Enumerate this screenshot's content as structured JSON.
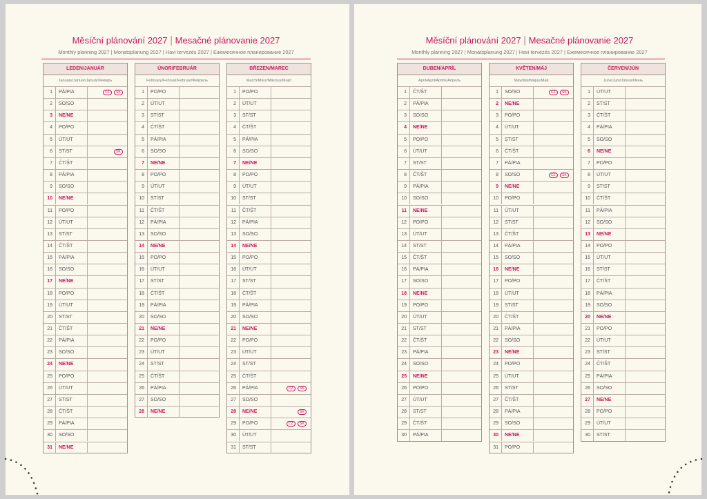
{
  "pages": [
    {
      "title_cz": "Měsíční plánování 2027",
      "title_sk": "Mesačné plánovanie 2027",
      "subtitle": "Monthly planning 2027 | Monatsplanung 2027 | Havi tervezés 2027 | Ежемесячное планирование 2027",
      "months": [
        {
          "name": "LEDEN/JANUÁR",
          "subtitle": "January/Januar/Január/Январь",
          "sundays": [
            3,
            10,
            17,
            24,
            31
          ],
          "days": [
            [
              1,
              "PÁ/PIA",
              "CZ",
              "SK"
            ],
            [
              2,
              "SO/SO"
            ],
            [
              3,
              "NE/NE"
            ],
            [
              4,
              "PO/PO"
            ],
            [
              5,
              "ÚT/UT"
            ],
            [
              6,
              "ST/ST",
              "SK"
            ],
            [
              7,
              "ČT/ŠT"
            ],
            [
              8,
              "PÁ/PIA"
            ],
            [
              9,
              "SO/SO"
            ],
            [
              10,
              "NE/NE"
            ],
            [
              11,
              "PO/PO"
            ],
            [
              12,
              "ÚT/UT"
            ],
            [
              13,
              "ST/ST"
            ],
            [
              14,
              "ČT/ŠT"
            ],
            [
              15,
              "PÁ/PIA"
            ],
            [
              16,
              "SO/SO"
            ],
            [
              17,
              "NE/NE"
            ],
            [
              18,
              "PO/PO"
            ],
            [
              19,
              "ÚT/UT"
            ],
            [
              20,
              "ST/ST"
            ],
            [
              21,
              "ČT/ŠT"
            ],
            [
              22,
              "PÁ/PIA"
            ],
            [
              23,
              "SO/SO"
            ],
            [
              24,
              "NE/NE"
            ],
            [
              25,
              "PO/PO"
            ],
            [
              26,
              "ÚT/UT"
            ],
            [
              27,
              "ST/ST"
            ],
            [
              28,
              "ČT/ŠT"
            ],
            [
              29,
              "PÁ/PIA"
            ],
            [
              30,
              "SO/SO"
            ],
            [
              31,
              "NE/NE"
            ]
          ]
        },
        {
          "name": "ÚNOR/FEBRUÁR",
          "subtitle": "February/Februar/Február/Февраль",
          "sundays": [
            7,
            14,
            21,
            28
          ],
          "days": [
            [
              1,
              "PO/PO"
            ],
            [
              2,
              "ÚT/UT"
            ],
            [
              3,
              "ST/ST"
            ],
            [
              4,
              "ČT/ŠT"
            ],
            [
              5,
              "PÁ/PIA"
            ],
            [
              6,
              "SO/SO"
            ],
            [
              7,
              "NE/NE"
            ],
            [
              8,
              "PO/PO"
            ],
            [
              9,
              "ÚT/UT"
            ],
            [
              10,
              "ST/ST"
            ],
            [
              11,
              "ČT/ŠT"
            ],
            [
              12,
              "PÁ/PIA"
            ],
            [
              13,
              "SO/SO"
            ],
            [
              14,
              "NE/NE"
            ],
            [
              15,
              "PO/PO"
            ],
            [
              16,
              "ÚT/UT"
            ],
            [
              17,
              "ST/ST"
            ],
            [
              18,
              "ČT/ŠT"
            ],
            [
              19,
              "PÁ/PIA"
            ],
            [
              20,
              "SO/SO"
            ],
            [
              21,
              "NE/NE"
            ],
            [
              22,
              "PO/PO"
            ],
            [
              23,
              "ÚT/UT"
            ],
            [
              24,
              "ST/ST"
            ],
            [
              25,
              "ČT/ŠT"
            ],
            [
              26,
              "PÁ/PIA"
            ],
            [
              27,
              "SO/SO"
            ],
            [
              28,
              "NE/NE"
            ]
          ]
        },
        {
          "name": "BŘEZEN/MAREC",
          "subtitle": "March/März/Március/Март",
          "sundays": [
            7,
            14,
            21,
            28
          ],
          "days": [
            [
              1,
              "PO/PO"
            ],
            [
              2,
              "ÚT/UT"
            ],
            [
              3,
              "ST/ST"
            ],
            [
              4,
              "ČT/ŠT"
            ],
            [
              5,
              "PÁ/PIA"
            ],
            [
              6,
              "SO/SO"
            ],
            [
              7,
              "NE/NE"
            ],
            [
              8,
              "PO/PO"
            ],
            [
              9,
              "ÚT/UT"
            ],
            [
              10,
              "ST/ST"
            ],
            [
              11,
              "ČT/ŠT"
            ],
            [
              12,
              "PÁ/PIA"
            ],
            [
              13,
              "SO/SO"
            ],
            [
              14,
              "NE/NE"
            ],
            [
              15,
              "PO/PO"
            ],
            [
              16,
              "ÚT/UT"
            ],
            [
              17,
              "ST/ST"
            ],
            [
              18,
              "ČT/ŠT"
            ],
            [
              19,
              "PÁ/PIA"
            ],
            [
              20,
              "SO/SO"
            ],
            [
              21,
              "NE/NE"
            ],
            [
              22,
              "PO/PO"
            ],
            [
              23,
              "ÚT/UT"
            ],
            [
              24,
              "ST/ST"
            ],
            [
              25,
              "ČT/ŠT"
            ],
            [
              26,
              "PÁ/PIA",
              "CZ",
              "SK"
            ],
            [
              27,
              "SO/SO"
            ],
            [
              28,
              "NE/NE",
              "SK"
            ],
            [
              29,
              "PO/PO",
              "CZ",
              "SK"
            ],
            [
              30,
              "ÚT/UT"
            ],
            [
              31,
              "ST/ST"
            ]
          ]
        }
      ]
    },
    {
      "title_cz": "Měsíční plánování 2027",
      "title_sk": "Mesačné plánovanie 2027",
      "subtitle": "Monthly planning 2027 | Monatsplanung 2027 | Havi tervezés 2027 | Ежемесячное планирование 2027",
      "months": [
        {
          "name": "DUBEN/APRÍL",
          "subtitle": "April/April/Április/Апрель",
          "sundays": [
            4,
            11,
            18,
            25
          ],
          "days": [
            [
              1,
              "ČT/ŠT"
            ],
            [
              2,
              "PÁ/PIA"
            ],
            [
              3,
              "SO/SO"
            ],
            [
              4,
              "NE/NE"
            ],
            [
              5,
              "PO/PO"
            ],
            [
              6,
              "ÚT/UT"
            ],
            [
              7,
              "ST/ST"
            ],
            [
              8,
              "ČT/ŠT"
            ],
            [
              9,
              "PÁ/PIA"
            ],
            [
              10,
              "SO/SO"
            ],
            [
              11,
              "NE/NE"
            ],
            [
              12,
              "PO/PO"
            ],
            [
              13,
              "ÚT/UT"
            ],
            [
              14,
              "ST/ST"
            ],
            [
              15,
              "ČT/ŠT"
            ],
            [
              16,
              "PÁ/PIA"
            ],
            [
              17,
              "SO/SO"
            ],
            [
              18,
              "NE/NE"
            ],
            [
              19,
              "PO/PO"
            ],
            [
              20,
              "ÚT/UT"
            ],
            [
              21,
              "ST/ST"
            ],
            [
              22,
              "ČT/ŠT"
            ],
            [
              23,
              "PÁ/PIA"
            ],
            [
              24,
              "SO/SO"
            ],
            [
              25,
              "NE/NE"
            ],
            [
              26,
              "PO/PO"
            ],
            [
              27,
              "ÚT/UT"
            ],
            [
              28,
              "ST/ST"
            ],
            [
              29,
              "ČT/ŠT"
            ],
            [
              30,
              "PÁ/PIA"
            ]
          ]
        },
        {
          "name": "KVĚTEN/MÁJ",
          "subtitle": "May/Mai/Május/Май",
          "sundays": [
            2,
            9,
            16,
            23,
            30
          ],
          "days": [
            [
              1,
              "SO/SO",
              "CZ",
              "SK"
            ],
            [
              2,
              "NE/NE"
            ],
            [
              3,
              "PO/PO"
            ],
            [
              4,
              "ÚT/UT"
            ],
            [
              5,
              "ST/ST"
            ],
            [
              6,
              "ČT/ŠT"
            ],
            [
              7,
              "PÁ/PIA"
            ],
            [
              8,
              "SO/SO",
              "CZ",
              "SK"
            ],
            [
              9,
              "NE/NE"
            ],
            [
              10,
              "PO/PO"
            ],
            [
              11,
              "ÚT/UT"
            ],
            [
              12,
              "ST/ST"
            ],
            [
              13,
              "ČT/ŠT"
            ],
            [
              14,
              "PÁ/PIA"
            ],
            [
              15,
              "SO/SO"
            ],
            [
              16,
              "NE/NE"
            ],
            [
              17,
              "PO/PO"
            ],
            [
              18,
              "ÚT/UT"
            ],
            [
              19,
              "ST/ST"
            ],
            [
              20,
              "ČT/ŠT"
            ],
            [
              21,
              "PÁ/PIA"
            ],
            [
              22,
              "SO/SO"
            ],
            [
              23,
              "NE/NE"
            ],
            [
              24,
              "PO/PO"
            ],
            [
              25,
              "ÚT/UT"
            ],
            [
              26,
              "ST/ST"
            ],
            [
              27,
              "ČT/ŠT"
            ],
            [
              28,
              "PÁ/PIA"
            ],
            [
              29,
              "SO/SO"
            ],
            [
              30,
              "NE/NE"
            ],
            [
              31,
              "PO/PO"
            ]
          ]
        },
        {
          "name": "ČERVEN/JÚN",
          "subtitle": "June/Juni/Június/Июнь",
          "sundays": [
            6,
            13,
            20,
            27
          ],
          "days": [
            [
              1,
              "ÚT/UT"
            ],
            [
              2,
              "ST/ST"
            ],
            [
              3,
              "ČT/ŠT"
            ],
            [
              4,
              "PÁ/PIA"
            ],
            [
              5,
              "SO/SO"
            ],
            [
              6,
              "NE/NE"
            ],
            [
              7,
              "PO/PO"
            ],
            [
              8,
              "ÚT/UT"
            ],
            [
              9,
              "ST/ST"
            ],
            [
              10,
              "ČT/ŠT"
            ],
            [
              11,
              "PÁ/PIA"
            ],
            [
              12,
              "SO/SO"
            ],
            [
              13,
              "NE/NE"
            ],
            [
              14,
              "PO/PO"
            ],
            [
              15,
              "ÚT/UT"
            ],
            [
              16,
              "ST/ST"
            ],
            [
              17,
              "ČT/ŠT"
            ],
            [
              18,
              "PÁ/PIA"
            ],
            [
              19,
              "SO/SO"
            ],
            [
              20,
              "NE/NE"
            ],
            [
              21,
              "PO/PO"
            ],
            [
              22,
              "ÚT/UT"
            ],
            [
              23,
              "ST/ST"
            ],
            [
              24,
              "ČT/ŠT"
            ],
            [
              25,
              "PÁ/PIA"
            ],
            [
              26,
              "SO/SO"
            ],
            [
              27,
              "NE/NE"
            ],
            [
              28,
              "PO/PO"
            ],
            [
              29,
              "ÚT/UT"
            ],
            [
              30,
              "ST/ST"
            ]
          ]
        }
      ]
    }
  ]
}
